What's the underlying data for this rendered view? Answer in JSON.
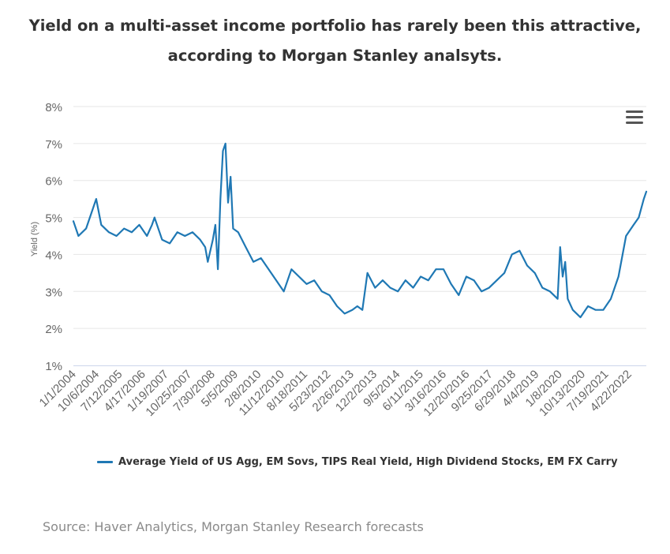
{
  "title_line1": "Yield on a multi-asset income portfolio has rarely been this attractive,",
  "title_line2": "according to Morgan Stanley analsyts.",
  "source": "Source: Haver Analytics, Morgan Stanley Research forecasts",
  "menu_icon": "hamburger-menu-icon",
  "colors": {
    "series": "#1f78b4",
    "grid": "#e6e6e6",
    "axis": "#ccd6eb",
    "text": "#666666"
  },
  "chart_data": {
    "type": "line",
    "ylabel": "Yield (%)",
    "xlabel": "",
    "ylim": [
      1,
      8
    ],
    "yticks": [
      "1%",
      "2%",
      "3%",
      "4%",
      "5%",
      "6%",
      "7%",
      "8%"
    ],
    "xlim": [
      "1/1/2004",
      "11/2022"
    ],
    "xticks": [
      "1/1/2004",
      "10/6/2004",
      "7/12/2005",
      "4/17/2006",
      "1/19/2007",
      "10/25/2007",
      "7/30/2008",
      "5/5/2009",
      "2/8/2010",
      "11/12/2010",
      "8/18/2011",
      "5/23/2012",
      "2/26/2013",
      "12/2/2013",
      "9/5/2014",
      "6/11/2015",
      "3/16/2016",
      "12/20/2016",
      "9/25/2017",
      "6/29/2018",
      "4/4/2019",
      "1/8/2020",
      "10/13/2020",
      "7/19/2021",
      "4/22/2022"
    ],
    "grid": "horizontal",
    "legend_position": "bottom",
    "series": [
      {
        "name": "Average Yield of US Agg, EM Sovs, TIPS Real Yield, High Dividend Stocks, EM FX Carry",
        "x": [
          "2004-01",
          "2004-03",
          "2004-06",
          "2004-09",
          "2004-10",
          "2004-12",
          "2005-03",
          "2005-06",
          "2005-09",
          "2005-12",
          "2006-03",
          "2006-06",
          "2006-08",
          "2006-09",
          "2006-12",
          "2007-03",
          "2007-06",
          "2007-09",
          "2007-12",
          "2008-03",
          "2008-05",
          "2008-06",
          "2008-08",
          "2008-09",
          "2008-10",
          "2008-11",
          "2008-12",
          "2009-01",
          "2009-02",
          "2009-03",
          "2009-04",
          "2009-06",
          "2009-09",
          "2009-12",
          "2010-03",
          "2010-06",
          "2010-09",
          "2010-12",
          "2011-03",
          "2011-06",
          "2011-09",
          "2011-12",
          "2012-03",
          "2012-06",
          "2012-09",
          "2012-12",
          "2013-03",
          "2013-05",
          "2013-07",
          "2013-09",
          "2013-12",
          "2014-03",
          "2014-06",
          "2014-09",
          "2014-12",
          "2015-03",
          "2015-06",
          "2015-09",
          "2015-12",
          "2016-03",
          "2016-06",
          "2016-09",
          "2016-12",
          "2017-03",
          "2017-06",
          "2017-09",
          "2017-12",
          "2018-03",
          "2018-06",
          "2018-09",
          "2018-12",
          "2019-03",
          "2019-06",
          "2019-09",
          "2019-12",
          "2020-01",
          "2020-02",
          "2020-03",
          "2020-04",
          "2020-06",
          "2020-09",
          "2020-12",
          "2021-03",
          "2021-06",
          "2021-09",
          "2021-12",
          "2022-03",
          "2022-06",
          "2022-08",
          "2022-10",
          "2022-11"
        ],
        "values": [
          4.9,
          4.5,
          4.7,
          5.3,
          5.5,
          4.8,
          4.6,
          4.5,
          4.7,
          4.6,
          4.8,
          4.5,
          4.8,
          5.0,
          4.4,
          4.3,
          4.6,
          4.5,
          4.6,
          4.4,
          4.2,
          3.8,
          4.4,
          4.8,
          3.6,
          5.5,
          6.8,
          7.0,
          5.4,
          6.1,
          4.7,
          4.6,
          4.2,
          3.8,
          3.9,
          3.6,
          3.3,
          3.0,
          3.6,
          3.4,
          3.2,
          3.3,
          3.0,
          2.9,
          2.6,
          2.4,
          2.5,
          2.6,
          2.5,
          3.5,
          3.1,
          3.3,
          3.1,
          3.0,
          3.3,
          3.1,
          3.4,
          3.3,
          3.6,
          3.6,
          3.2,
          2.9,
          3.4,
          3.3,
          3.0,
          3.1,
          3.3,
          3.5,
          4.0,
          4.1,
          3.7,
          3.5,
          3.1,
          3.0,
          2.8,
          4.2,
          3.4,
          3.8,
          2.8,
          2.5,
          2.3,
          2.6,
          2.5,
          2.5,
          2.8,
          3.4,
          4.5,
          4.8,
          5.0,
          5.5,
          5.7
        ]
      }
    ]
  }
}
